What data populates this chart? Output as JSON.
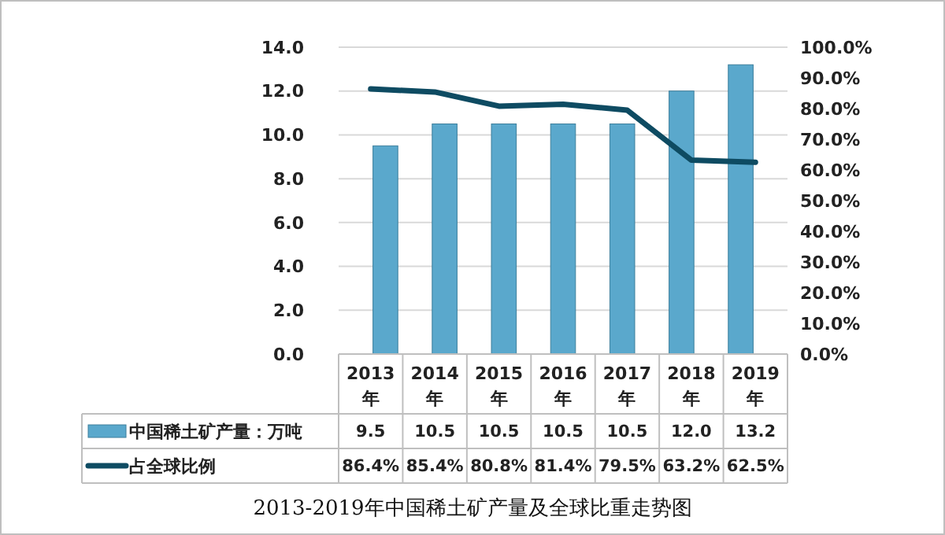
{
  "chart_data": {
    "type": "bar",
    "title": "2013-2019年中国稀土矿产量及全球比重走势图",
    "categories": [
      "2013年",
      "2014年",
      "2015年",
      "2016年",
      "2017年",
      "2018年",
      "2019年"
    ],
    "series": [
      {
        "name": "中国稀土矿产量：万吨",
        "color": "#5aa8cc",
        "values": [
          9.5,
          10.5,
          10.5,
          10.5,
          10.5,
          12.0,
          13.2
        ],
        "value_labels": [
          "9.5",
          "10.5",
          "10.5",
          "10.5",
          "10.5",
          "12.0",
          "13.2"
        ]
      },
      {
        "name": "占全球比例",
        "type": "line",
        "axis": "y2",
        "color": "#0e4b62",
        "values": [
          86.4,
          85.4,
          80.8,
          81.4,
          79.5,
          63.2,
          62.5
        ],
        "value_labels": [
          "86.4%",
          "85.4%",
          "80.8%",
          "81.4%",
          "79.5%",
          "63.2%",
          "62.5%"
        ]
      }
    ],
    "ylim": [
      0,
      14
    ],
    "yticks": [
      {
        "value": 0,
        "label": "0.0"
      },
      {
        "value": 2,
        "label": "2.0"
      },
      {
        "value": 4,
        "label": "4.0"
      },
      {
        "value": 6,
        "label": "6.0"
      },
      {
        "value": 8,
        "label": "8.0"
      },
      {
        "value": 10,
        "label": "10.0"
      },
      {
        "value": 12,
        "label": "12.0"
      },
      {
        "value": 14,
        "label": "14.0"
      }
    ],
    "y2lim": [
      0,
      100
    ],
    "y2ticks": [
      {
        "value": 0,
        "label": "0.0%"
      },
      {
        "value": 10,
        "label": "10.0%"
      },
      {
        "value": 20,
        "label": "20.0%"
      },
      {
        "value": 30,
        "label": "30.0%"
      },
      {
        "value": 40,
        "label": "40.0%"
      },
      {
        "value": 50,
        "label": "50.0%"
      },
      {
        "value": 60,
        "label": "60.0%"
      },
      {
        "value": 70,
        "label": "70.0%"
      },
      {
        "value": 80,
        "label": "80.0%"
      },
      {
        "value": 90,
        "label": "90.0%"
      },
      {
        "value": 100,
        "label": "100.0%"
      }
    ],
    "grid": "y",
    "legend": "bottom",
    "data_labels": true,
    "marker": "none",
    "line_style": "solid"
  }
}
